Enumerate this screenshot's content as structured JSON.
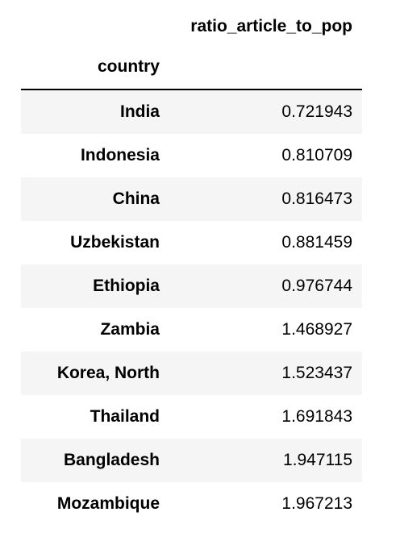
{
  "table": {
    "column_header": "ratio_article_to_pop",
    "index_name": "country",
    "rows": [
      {
        "country": "India",
        "value": "0.721943"
      },
      {
        "country": "Indonesia",
        "value": "0.810709"
      },
      {
        "country": "China",
        "value": "0.816473"
      },
      {
        "country": "Uzbekistan",
        "value": "0.881459"
      },
      {
        "country": "Ethiopia",
        "value": "0.976744"
      },
      {
        "country": "Zambia",
        "value": "1.468927"
      },
      {
        "country": "Korea, North",
        "value": "1.523437"
      },
      {
        "country": "Thailand",
        "value": "1.691843"
      },
      {
        "country": "Bangladesh",
        "value": "1.947115"
      },
      {
        "country": "Mozambique",
        "value": "1.967213"
      }
    ]
  }
}
